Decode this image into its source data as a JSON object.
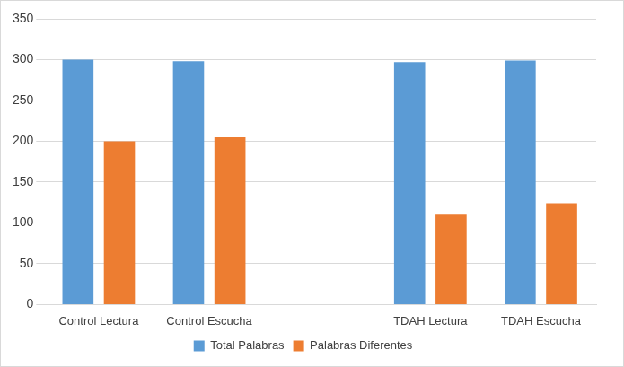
{
  "chart_data": {
    "type": "bar",
    "categories": [
      "Control Lectura",
      "Control Escucha",
      null,
      "TDAH Lectura",
      "TDAH Escucha"
    ],
    "series": [
      {
        "name": "Total Palabras",
        "color": "#5b9bd5",
        "values": [
          300,
          298,
          null,
          297,
          299
        ]
      },
      {
        "name": "Palabras Diferentes",
        "color": "#ed7d31",
        "values": [
          200,
          205,
          null,
          110,
          124
        ]
      }
    ],
    "ylim": [
      0,
      350
    ],
    "yticks": [
      0,
      50,
      100,
      150,
      200,
      250,
      300,
      350
    ],
    "grid": true,
    "legend": "bottom"
  }
}
